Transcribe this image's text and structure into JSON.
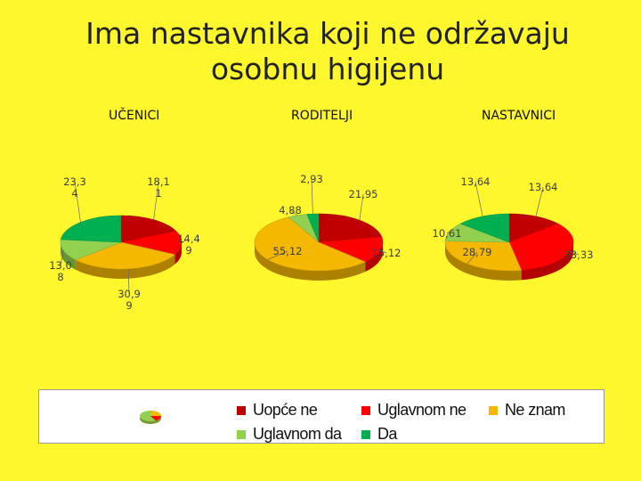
{
  "title_line1": "Ima nastavnika koji ne održavaju",
  "title_line2": "osobnu higijenu",
  "chart_data": [
    {
      "type": "pie",
      "title": "UČENICI",
      "slices": [
        {
          "label": "Uopće ne",
          "value": 18.11,
          "text": "18,1\n1",
          "color": "#C00000"
        },
        {
          "label": "Uglavnom ne",
          "value": 14.49,
          "text": "14,4\n9",
          "color": "#FF0000"
        },
        {
          "label": "Ne znam",
          "value": 30.99,
          "text": "30,9\n9",
          "color": "#F5B800"
        },
        {
          "label": "Uglavnom da",
          "value": 13.08,
          "text": "13,0\n8",
          "color": "#92D050"
        },
        {
          "label": "Da",
          "value": 23.34,
          "text": "23,3\n4",
          "color": "#00B050"
        }
      ]
    },
    {
      "type": "pie",
      "title": "RODITELJI",
      "slices": [
        {
          "label": "Uopće ne",
          "value": 21.95,
          "text": "21,95",
          "color": "#C00000"
        },
        {
          "label": "Uglavnom ne",
          "value": 15.12,
          "text": "15,12",
          "color": "#FF0000"
        },
        {
          "label": "Ne znam",
          "value": 55.12,
          "text": "55,12",
          "color": "#F5B800"
        },
        {
          "label": "Uglavnom da",
          "value": 4.88,
          "text": "4,88",
          "color": "#92D050"
        },
        {
          "label": "Da",
          "value": 2.93,
          "text": "2,93",
          "color": "#00B050"
        }
      ]
    },
    {
      "type": "pie",
      "title": "NASTAVNICI",
      "slices": [
        {
          "label": "Uopće ne",
          "value": 13.64,
          "text": "13,64",
          "color": "#C00000"
        },
        {
          "label": "Uglavnom ne",
          "value": 33.33,
          "text": "33,33",
          "color": "#FF0000"
        },
        {
          "label": "Ne znam",
          "value": 28.79,
          "text": "28,79",
          "color": "#F5B800"
        },
        {
          "label": "Uglavnom da",
          "value": 10.61,
          "text": "10,61",
          "color": "#92D050"
        },
        {
          "label": "Da",
          "value": 13.64,
          "text": "13,64",
          "color": "#00B050"
        }
      ]
    }
  ],
  "legend": [
    {
      "label": "Uopće ne",
      "color": "#C00000"
    },
    {
      "label": "Uglavnom ne",
      "color": "#FF0000"
    },
    {
      "label": "Ne znam",
      "color": "#F5B800"
    },
    {
      "label": "Uglavnom da",
      "color": "#92D050"
    },
    {
      "label": "Da",
      "color": "#00B050"
    }
  ],
  "colors": {
    "background": "#FFF72E",
    "legend_background": "#FFFFFF"
  }
}
